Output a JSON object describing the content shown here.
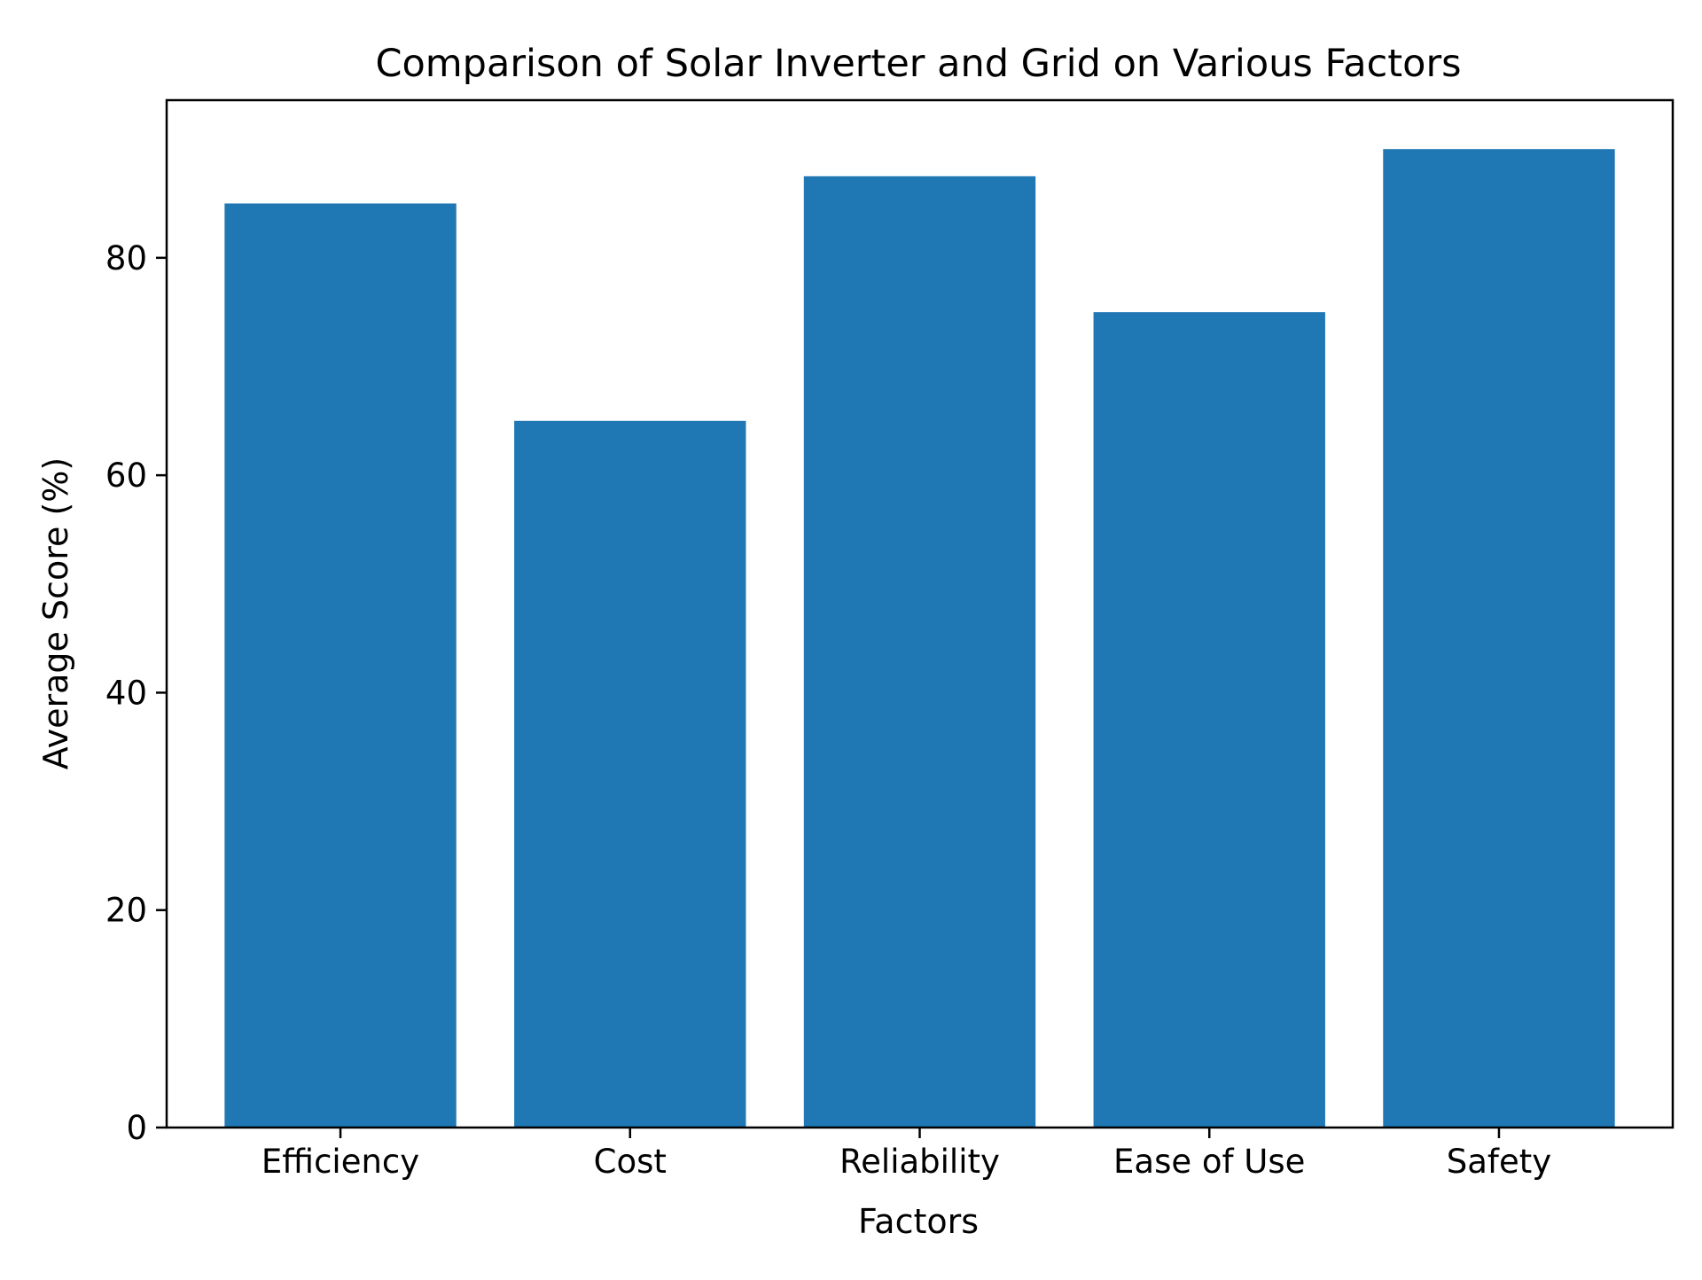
{
  "chart_data": {
    "type": "bar",
    "title": "Comparison of Solar Inverter and Grid on Various Factors",
    "xlabel": "Factors",
    "ylabel": "Average Score (%)",
    "categories": [
      "Efficiency",
      "Cost",
      "Reliability",
      "Ease of Use",
      "Safety"
    ],
    "values": [
      85,
      65,
      87.5,
      75,
      90
    ],
    "ylim": [
      0,
      94.5
    ],
    "yticks": [
      0,
      20,
      40,
      60,
      80
    ],
    "grid": false,
    "legend": "none",
    "bar_color": "#1f77b4"
  }
}
